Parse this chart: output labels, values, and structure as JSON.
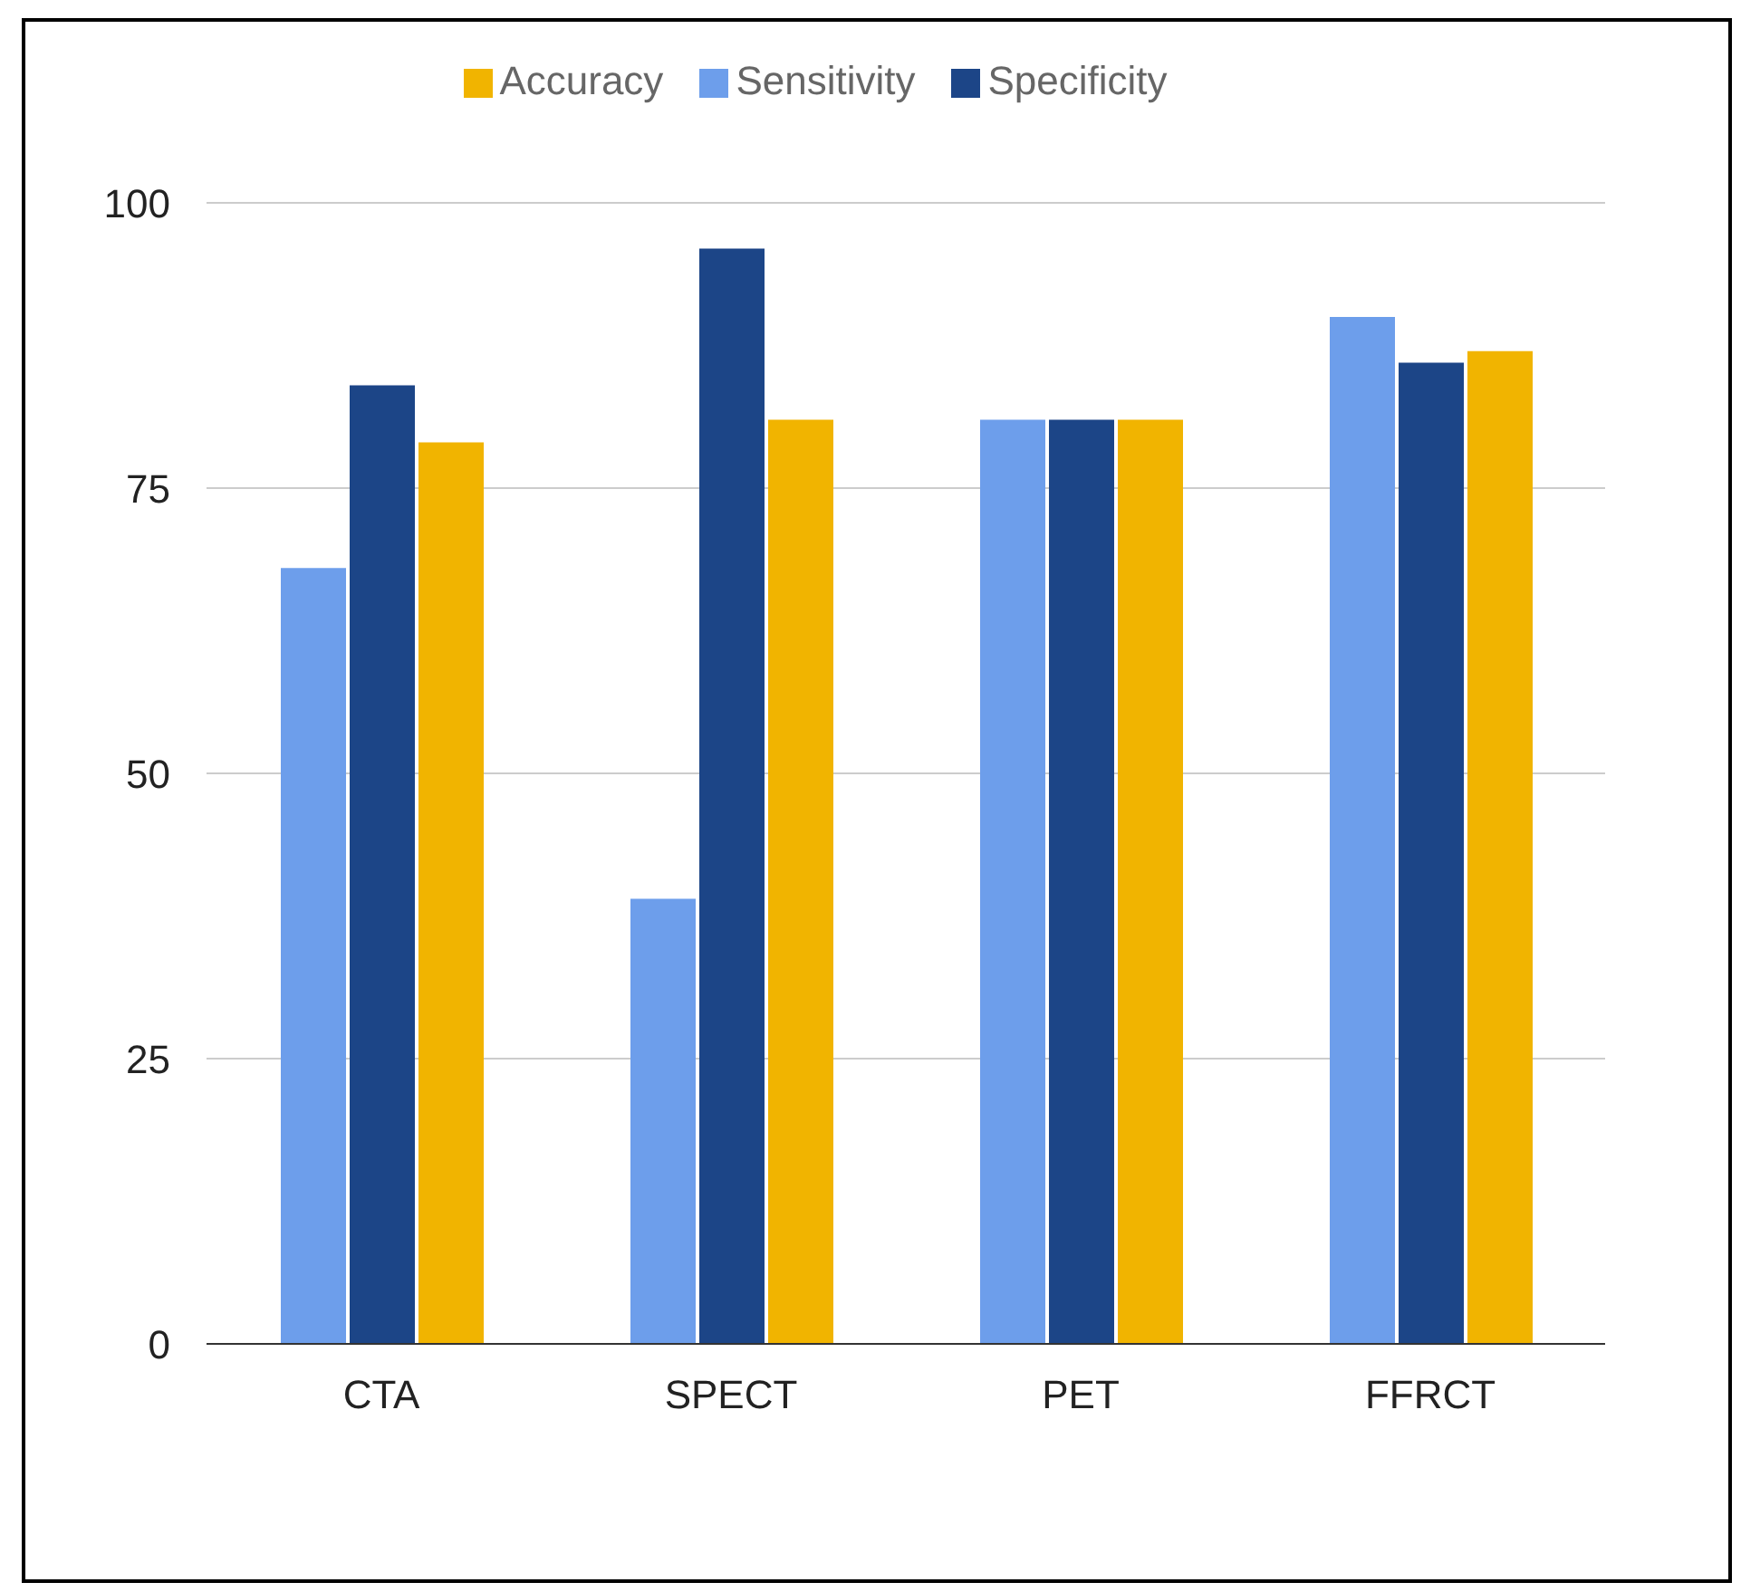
{
  "chart_data": {
    "type": "bar",
    "categories": [
      "CTA",
      "SPECT",
      "PET",
      "FFRCT"
    ],
    "series": [
      {
        "name": "Sensitivity",
        "color": "#6d9eeb",
        "values": [
          68,
          39,
          81,
          90
        ]
      },
      {
        "name": "Specificity",
        "color": "#1c4587",
        "values": [
          84,
          96,
          81,
          86
        ]
      },
      {
        "name": "Accuracy",
        "color": "#f1b400",
        "values": [
          79,
          81,
          81,
          87
        ]
      }
    ],
    "ylim": [
      0,
      100
    ],
    "yticks": [
      0,
      25,
      50,
      75,
      100
    ],
    "grid": "y",
    "legend": "top"
  }
}
